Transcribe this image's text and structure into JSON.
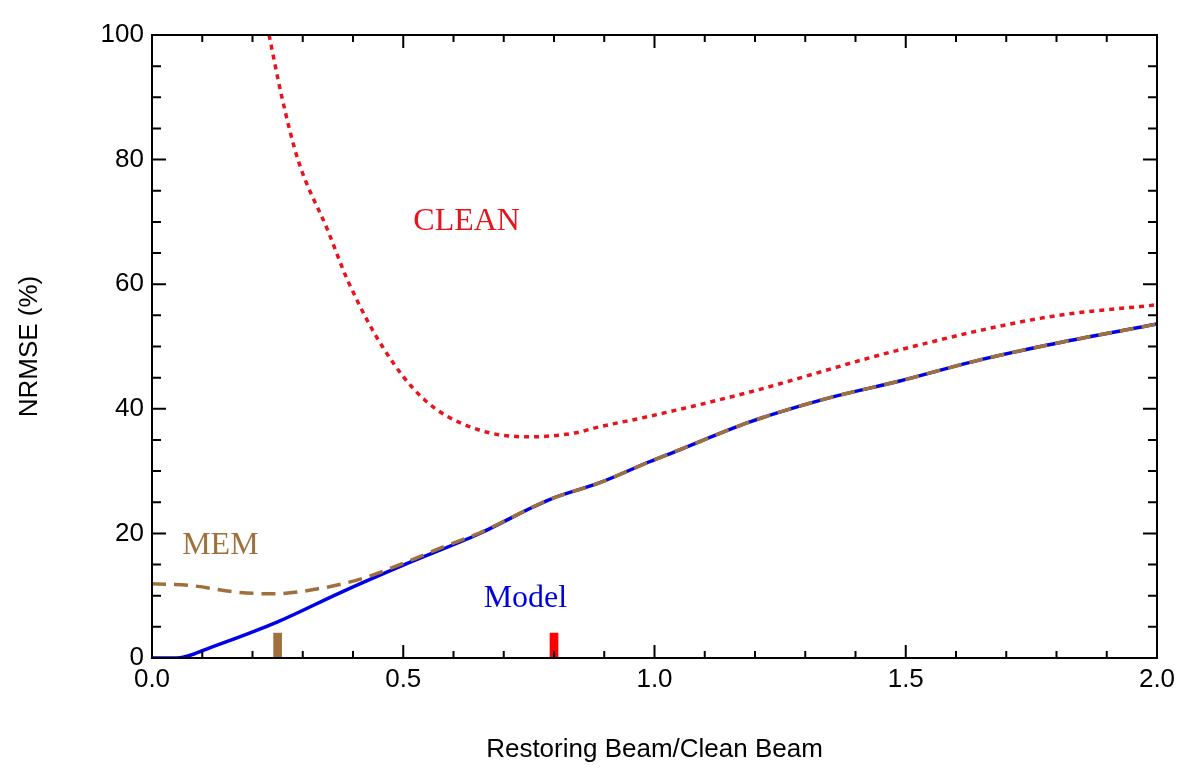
{
  "chart_data": {
    "type": "line",
    "xlabel": "Restoring Beam/Clean Beam",
    "ylabel": "NRMSE (%)",
    "xlim": [
      0,
      2
    ],
    "ylim": [
      0,
      100
    ],
    "xticks": [
      {
        "value": 0,
        "label": "0.0"
      },
      {
        "value": 0.1,
        "label": null
      },
      {
        "value": 0.2,
        "label": null
      },
      {
        "value": 0.3,
        "label": null
      },
      {
        "value": 0.4,
        "label": null
      },
      {
        "value": 0.5,
        "label": "0.5"
      },
      {
        "value": 0.6,
        "label": null
      },
      {
        "value": 0.7,
        "label": null
      },
      {
        "value": 0.8,
        "label": null
      },
      {
        "value": 0.9,
        "label": null
      },
      {
        "value": 1,
        "label": "1.0"
      },
      {
        "value": 1.1,
        "label": null
      },
      {
        "value": 1.2,
        "label": null
      },
      {
        "value": 1.3,
        "label": null
      },
      {
        "value": 1.4,
        "label": null
      },
      {
        "value": 1.5,
        "label": "1.5"
      },
      {
        "value": 1.6,
        "label": null
      },
      {
        "value": 1.7,
        "label": null
      },
      {
        "value": 1.8,
        "label": null
      },
      {
        "value": 1.9,
        "label": null
      },
      {
        "value": 2,
        "label": "2.0"
      }
    ],
    "yticks": [
      0,
      {
        "value": 5,
        "label": null
      },
      {
        "value": 10,
        "label": null
      },
      {
        "value": 15,
        "label": null
      },
      20,
      {
        "value": 25,
        "label": null
      },
      {
        "value": 30,
        "label": null
      },
      {
        "value": 35,
        "label": null
      },
      40,
      {
        "value": 45,
        "label": null
      },
      {
        "value": 50,
        "label": null
      },
      {
        "value": 55,
        "label": null
      },
      60,
      {
        "value": 65,
        "label": null
      },
      {
        "value": 70,
        "label": null
      },
      {
        "value": 75,
        "label": null
      },
      80,
      {
        "value": 85,
        "label": null
      },
      {
        "value": 90,
        "label": null
      },
      {
        "value": 95,
        "label": null
      },
      100
    ],
    "marker": "none",
    "series": [
      {
        "name": "MEM",
        "color": "#a0703c",
        "line_style": "dashed",
        "x": [
          0,
          0.08,
          0.165,
          0.24,
          0.33,
          0.42,
          0.5,
          0.585,
          0.65,
          0.79,
          0.89,
          0.99,
          1.04,
          1.19,
          1.34,
          1.49,
          1.63,
          1.78,
          2
        ],
        "values": [
          11.9,
          11.6,
          10.6,
          10.3,
          11.1,
          12.8,
          15.2,
          18,
          20,
          25.4,
          28.1,
          31.5,
          33.1,
          37.9,
          41.6,
          44.5,
          47.5,
          50.2,
          53.6
        ]
      },
      {
        "name": "Model",
        "color": "#0000e6",
        "line_style": "solid",
        "x": [
          0,
          0.05,
          0.12,
          0.25,
          0.375,
          0.5,
          0.65,
          0.79,
          0.89,
          0.99,
          1.04,
          1.19,
          1.34,
          1.49,
          1.63,
          1.78,
          2
        ],
        "values": [
          0,
          0,
          1.8,
          5.8,
          10.5,
          14.9,
          19.9,
          25.4,
          28.1,
          31.5,
          33.1,
          37.9,
          41.6,
          44.5,
          47.5,
          50.2,
          53.6
        ]
      },
      {
        "name": "CLEAN",
        "color": "#e8141c",
        "line_style": "dotted",
        "x": [
          0.233,
          0.258,
          0.29,
          0.35,
          0.39,
          0.46,
          0.54,
          0.64,
          0.75,
          0.84,
          0.89,
          0.99,
          1.19,
          1.48,
          1.78,
          2
        ],
        "values": [
          100,
          90.2,
          80.1,
          68.6,
          60.5,
          49.8,
          41.6,
          36.9,
          35.5,
          36.1,
          37.1,
          38.8,
          42.7,
          49.3,
          54.7,
          56.7
        ]
      },
      {
        "type": "bar",
        "x": [
          0.25,
          0.8
        ],
        "values": [
          4,
          4
        ],
        "colors": [
          "#a0703c",
          "#ff0000"
        ]
      }
    ]
  }
}
